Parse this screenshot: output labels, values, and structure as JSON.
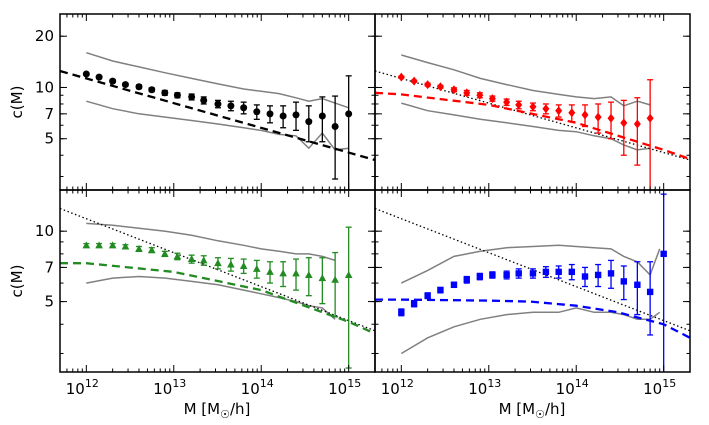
{
  "chart_data": {
    "type": "scatter",
    "layout": "2x2 grid, shared log x axis, shared log y axis",
    "x_scale": "log",
    "y_scale": "log",
    "xlim": [
      500000000000.0,
      2000000000000000.0
    ],
    "ylim_top_row": [
      2.5,
      27
    ],
    "ylim_bottom_row": [
      2.5,
      15
    ],
    "ylabel": "c(M)",
    "xlabel": "M [M",
    "xlabel_sub": "☉",
    "xlabel_suffix": "/h]",
    "x_ticks": [
      {
        "value": 1000000000000.0,
        "base": "10",
        "exp": "12"
      },
      {
        "value": 10000000000000.0,
        "base": "10",
        "exp": "13"
      },
      {
        "value": 100000000000000.0,
        "base": "10",
        "exp": "14"
      },
      {
        "value": 1000000000000000.0,
        "base": "10",
        "exp": "15"
      }
    ],
    "y_ticks_top": [
      {
        "value": 5,
        "label": "5"
      },
      {
        "value": 7,
        "label": "7"
      },
      {
        "value": 10,
        "label": "10"
      },
      {
        "value": 20,
        "label": "20"
      }
    ],
    "y_ticks_bottom": [
      {
        "value": 5,
        "label": "5"
      },
      {
        "value": 7,
        "label": "7"
      },
      {
        "value": 10,
        "label": "10"
      }
    ],
    "panels": [
      {
        "position": "top-left",
        "color": "#000000",
        "marker": "circle",
        "points": {
          "x": [
            1000000000000.0,
            1400000000000.0,
            2000000000000.0,
            2800000000000.0,
            4000000000000.0,
            5600000000000.0,
            7900000000000.0,
            11000000000000.0,
            16000000000000.0,
            22000000000000.0,
            32000000000000.0,
            45000000000000.0,
            63000000000000.0,
            89000000000000.0,
            126000000000000.0,
            178000000000000.0,
            250000000000000.0,
            350000000000000.0,
            500000000000000.0,
            700000000000000.0,
            1000000000000000.0
          ],
          "y": [
            12.0,
            11.5,
            10.9,
            10.4,
            10.1,
            9.7,
            9.3,
            9.0,
            8.8,
            8.4,
            8.0,
            7.8,
            7.6,
            7.2,
            7.0,
            6.8,
            6.9,
            6.3,
            6.8,
            5.9,
            7.0
          ],
          "err": [
            0.15,
            0.15,
            0.2,
            0.2,
            0.25,
            0.25,
            0.3,
            0.3,
            0.35,
            0.4,
            0.4,
            0.5,
            0.6,
            0.7,
            0.8,
            1.0,
            1.3,
            1.5,
            2.0,
            3.0,
            4.7
          ]
        },
        "dashed_model": {
          "x": [
            500000000000.0,
            2000000000000000.0
          ],
          "y": [
            12.5,
            3.75
          ]
        },
        "dotted_reference": null,
        "scatter_band": {
          "x": [
            1000000000000.0,
            2000000000000.0,
            4000000000000.0,
            8000000000000.0,
            16000000000000.0,
            32000000000000.0,
            63000000000000.0,
            100000000000000.0,
            160000000000000.0,
            250000000000000.0,
            350000000000000.0,
            500000000000000.0,
            700000000000000.0,
            1000000000000000.0
          ],
          "upper": [
            16,
            14.3,
            13.2,
            12.2,
            11.3,
            10.5,
            9.8,
            9.5,
            9.2,
            8.7,
            8.3,
            8.6,
            8.1,
            7.6
          ],
          "lower": [
            8.3,
            7.5,
            7.0,
            6.7,
            6.4,
            6.1,
            5.8,
            5.6,
            5.3,
            5.2,
            4.4,
            5.4,
            4.3,
            4.4
          ]
        }
      },
      {
        "position": "top-right",
        "color": "#ff0000",
        "marker": "diamond",
        "points": {
          "x": [
            1000000000000.0,
            1400000000000.0,
            2000000000000.0,
            2800000000000.0,
            4000000000000.0,
            5600000000000.0,
            7900000000000.0,
            11000000000000.0,
            16000000000000.0,
            22000000000000.0,
            32000000000000.0,
            45000000000000.0,
            63000000000000.0,
            89000000000000.0,
            126000000000000.0,
            178000000000000.0,
            250000000000000.0,
            350000000000000.0,
            500000000000000.0,
            700000000000000.0
          ],
          "y": [
            11.5,
            10.9,
            10.4,
            10.1,
            9.7,
            9.3,
            9.0,
            8.6,
            8.2,
            7.9,
            7.7,
            7.5,
            7.3,
            7.1,
            6.9,
            6.7,
            6.6,
            6.2,
            6.1,
            6.6
          ],
          "err": [
            0.15,
            0.15,
            0.2,
            0.2,
            0.25,
            0.3,
            0.3,
            0.3,
            0.35,
            0.4,
            0.4,
            0.5,
            0.6,
            0.8,
            1.0,
            1.3,
            1.6,
            2.2,
            2.6,
            4.5
          ]
        },
        "dashed_model": {
          "x": [
            500000000000.0,
            1000000000000.0,
            10000000000000.0,
            100000000000000.0,
            1000000000000000.0,
            2000000000000000.0
          ],
          "y": [
            9.3,
            9.1,
            7.9,
            6.2,
            4.3,
            3.8
          ]
        },
        "dotted_reference": {
          "x": [
            500000000000.0,
            2000000000000000.0
          ],
          "y": [
            12.5,
            3.75
          ]
        },
        "scatter_band": {
          "x": [
            1000000000000.0,
            2000000000000.0,
            4000000000000.0,
            8000000000000.0,
            16000000000000.0,
            32000000000000.0,
            63000000000000.0,
            100000000000000.0,
            160000000000000.0,
            250000000000000.0,
            350000000000000.0,
            500000000000000.0,
            700000000000000.0
          ],
          "upper": [
            15.5,
            14,
            12.7,
            11.3,
            10.4,
            9.6,
            9.1,
            8.8,
            8.6,
            8.8,
            7.8,
            8.3,
            7.9
          ],
          "lower": [
            8.1,
            7.3,
            6.9,
            6.5,
            6.2,
            5.9,
            5.6,
            5.5,
            5.2,
            5.0,
            4.6,
            4.3,
            4.4
          ]
        }
      },
      {
        "position": "bottom-left",
        "color": "#228b22",
        "marker": "triangle",
        "points": {
          "x": [
            1000000000000.0,
            1400000000000.0,
            2000000000000.0,
            2800000000000.0,
            4000000000000.0,
            5600000000000.0,
            7900000000000.0,
            11000000000000.0,
            16000000000000.0,
            22000000000000.0,
            32000000000000.0,
            45000000000000.0,
            63000000000000.0,
            89000000000000.0,
            126000000000000.0,
            178000000000000.0,
            250000000000000.0,
            350000000000000.0,
            500000000000000.0,
            700000000000000.0,
            1000000000000000.0
          ],
          "y": [
            8.7,
            8.7,
            8.7,
            8.6,
            8.4,
            8.3,
            8.0,
            7.8,
            7.6,
            7.5,
            7.3,
            7.2,
            7.1,
            6.9,
            6.7,
            6.6,
            6.6,
            6.5,
            6.3,
            6.2,
            6.5
          ],
          "err": [
            0.15,
            0.15,
            0.15,
            0.15,
            0.2,
            0.2,
            0.2,
            0.25,
            0.3,
            0.35,
            0.4,
            0.45,
            0.5,
            0.6,
            0.7,
            0.8,
            1.0,
            1.2,
            1.4,
            1.9,
            3.9
          ]
        },
        "dashed_model": {
          "x": [
            500000000000.0,
            1000000000000.0,
            10000000000000.0,
            100000000000000.0,
            1000000000000000.0,
            2000000000000000.0
          ],
          "y": [
            7.3,
            7.3,
            6.7,
            5.6,
            4.1,
            3.65
          ]
        },
        "dotted_reference": {
          "x": [
            500000000000.0,
            2000000000000000.0
          ],
          "y": [
            12.5,
            3.75
          ]
        },
        "scatter_band": {
          "x": [
            1000000000000.0,
            2000000000000.0,
            4000000000000.0,
            8000000000000.0,
            16000000000000.0,
            32000000000000.0,
            63000000000000.0,
            100000000000000.0,
            160000000000000.0,
            250000000000000.0,
            350000000000000.0,
            500000000000000.0,
            700000000000000.0
          ],
          "upper": [
            10.8,
            10.6,
            10.3,
            10.0,
            9.6,
            9.1,
            8.7,
            8.4,
            8.2,
            8.0,
            8.0,
            7.8,
            7.5
          ],
          "lower": [
            6.0,
            6.3,
            6.4,
            6.3,
            6.1,
            5.9,
            5.6,
            5.4,
            5.2,
            5.0,
            4.8,
            4.7,
            4.2
          ]
        }
      },
      {
        "position": "bottom-right",
        "color": "#0000ff",
        "marker": "square",
        "points": {
          "x": [
            1000000000000.0,
            1400000000000.0,
            2000000000000.0,
            2800000000000.0,
            4000000000000.0,
            5600000000000.0,
            7900000000000.0,
            11000000000000.0,
            16000000000000.0,
            22000000000000.0,
            32000000000000.0,
            45000000000000.0,
            63000000000000.0,
            89000000000000.0,
            126000000000000.0,
            178000000000000.0,
            250000000000000.0,
            350000000000000.0,
            500000000000000.0,
            700000000000000.0,
            1000000000000000.0
          ],
          "y": [
            4.5,
            4.9,
            5.3,
            5.6,
            5.9,
            6.2,
            6.4,
            6.5,
            6.5,
            6.6,
            6.6,
            6.7,
            6.7,
            6.7,
            6.4,
            6.5,
            6.6,
            6.1,
            5.9,
            5.5,
            8.0
          ],
          "err": [
            0.15,
            0.15,
            0.15,
            0.15,
            0.15,
            0.2,
            0.2,
            0.2,
            0.25,
            0.3,
            0.3,
            0.35,
            0.4,
            0.5,
            0.6,
            0.7,
            0.9,
            1.0,
            1.5,
            1.9,
            6.4
          ]
        },
        "dashed_model": {
          "x": [
            500000000000.0,
            1000000000000.0,
            10000000000000.0,
            30000000000000.0,
            100000000000000.0,
            300000000000000.0,
            1000000000000000.0,
            2000000000000000.0
          ],
          "y": [
            5.1,
            5.1,
            5.05,
            5.0,
            4.8,
            4.5,
            4.0,
            3.5
          ]
        },
        "dotted_reference": {
          "x": [
            500000000000.0,
            2000000000000000.0
          ],
          "y": [
            12.5,
            3.75
          ]
        },
        "scatter_band": {
          "x": [
            1000000000000.0,
            2000000000000.0,
            4000000000000.0,
            8000000000000.0,
            16000000000000.0,
            32000000000000.0,
            63000000000000.0,
            100000000000000.0,
            160000000000000.0,
            250000000000000.0,
            350000000000000.0,
            500000000000000.0,
            700000000000000.0,
            900000000000000.0
          ],
          "upper": [
            6.0,
            6.8,
            7.8,
            8.2,
            8.5,
            8.6,
            8.7,
            8.6,
            8.5,
            8.4,
            7.8,
            7.4,
            6.5,
            8.4
          ],
          "lower": [
            3.0,
            3.5,
            3.9,
            4.2,
            4.4,
            4.5,
            4.5,
            4.7,
            4.5,
            4.5,
            4.4,
            4.2,
            4.2,
            4.5
          ]
        }
      }
    ]
  }
}
